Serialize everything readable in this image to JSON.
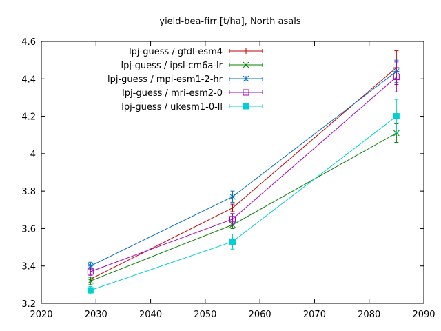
{
  "chart_data": {
    "type": "line",
    "title": "yield-bea-firr [t/ha], North asals",
    "xlabel": "",
    "ylabel": "",
    "xlim": [
      2020,
      2090
    ],
    "ylim": [
      3.2,
      4.6
    ],
    "xticks": [
      2020,
      2030,
      2040,
      2050,
      2060,
      2070,
      2080,
      2090
    ],
    "yticks": [
      3.2,
      3.4,
      3.6,
      3.8,
      4.0,
      4.2,
      4.4,
      4.6
    ],
    "xtick_labels": [
      "2020",
      "2030",
      "2040",
      "2050",
      "2060",
      "2070",
      "2080",
      "2090"
    ],
    "ytick_labels": [
      "3.2",
      "3.4",
      "3.6",
      "3.8",
      "4",
      "4.2",
      "4.4",
      "4.6"
    ],
    "grid": false,
    "legend_position": "top-left",
    "x": [
      2029,
      2055,
      2085
    ],
    "series": [
      {
        "name": "lpj-guess / gfdl-esm4",
        "color": "#c00000",
        "marker": "plus",
        "values": [
          3.33,
          3.71,
          4.46
        ],
        "err": [
          0.01,
          0.02,
          0.09
        ]
      },
      {
        "name": "lpj-guess / ipsl-cm6a-lr",
        "color": "#008000",
        "marker": "cross",
        "values": [
          3.32,
          3.62,
          4.11
        ],
        "err": [
          0.02,
          0.02,
          0.05
        ]
      },
      {
        "name": "lpj-guess / mpi-esm1-2-hr",
        "color": "#0070c0",
        "marker": "star",
        "values": [
          3.4,
          3.77,
          4.44
        ],
        "err": [
          0.02,
          0.03,
          0.06
        ]
      },
      {
        "name": "lpj-guess / mri-esm2-0",
        "color": "#a000c0",
        "marker": "square-open",
        "values": [
          3.37,
          3.65,
          4.41
        ],
        "err": [
          0.02,
          0.03,
          0.08
        ]
      },
      {
        "name": "lpj-guess / ukesm1-0-ll",
        "color": "#00d0d0",
        "marker": "square-filled",
        "values": [
          3.27,
          3.53,
          4.2
        ],
        "err": [
          0.02,
          0.04,
          0.09
        ]
      }
    ]
  }
}
